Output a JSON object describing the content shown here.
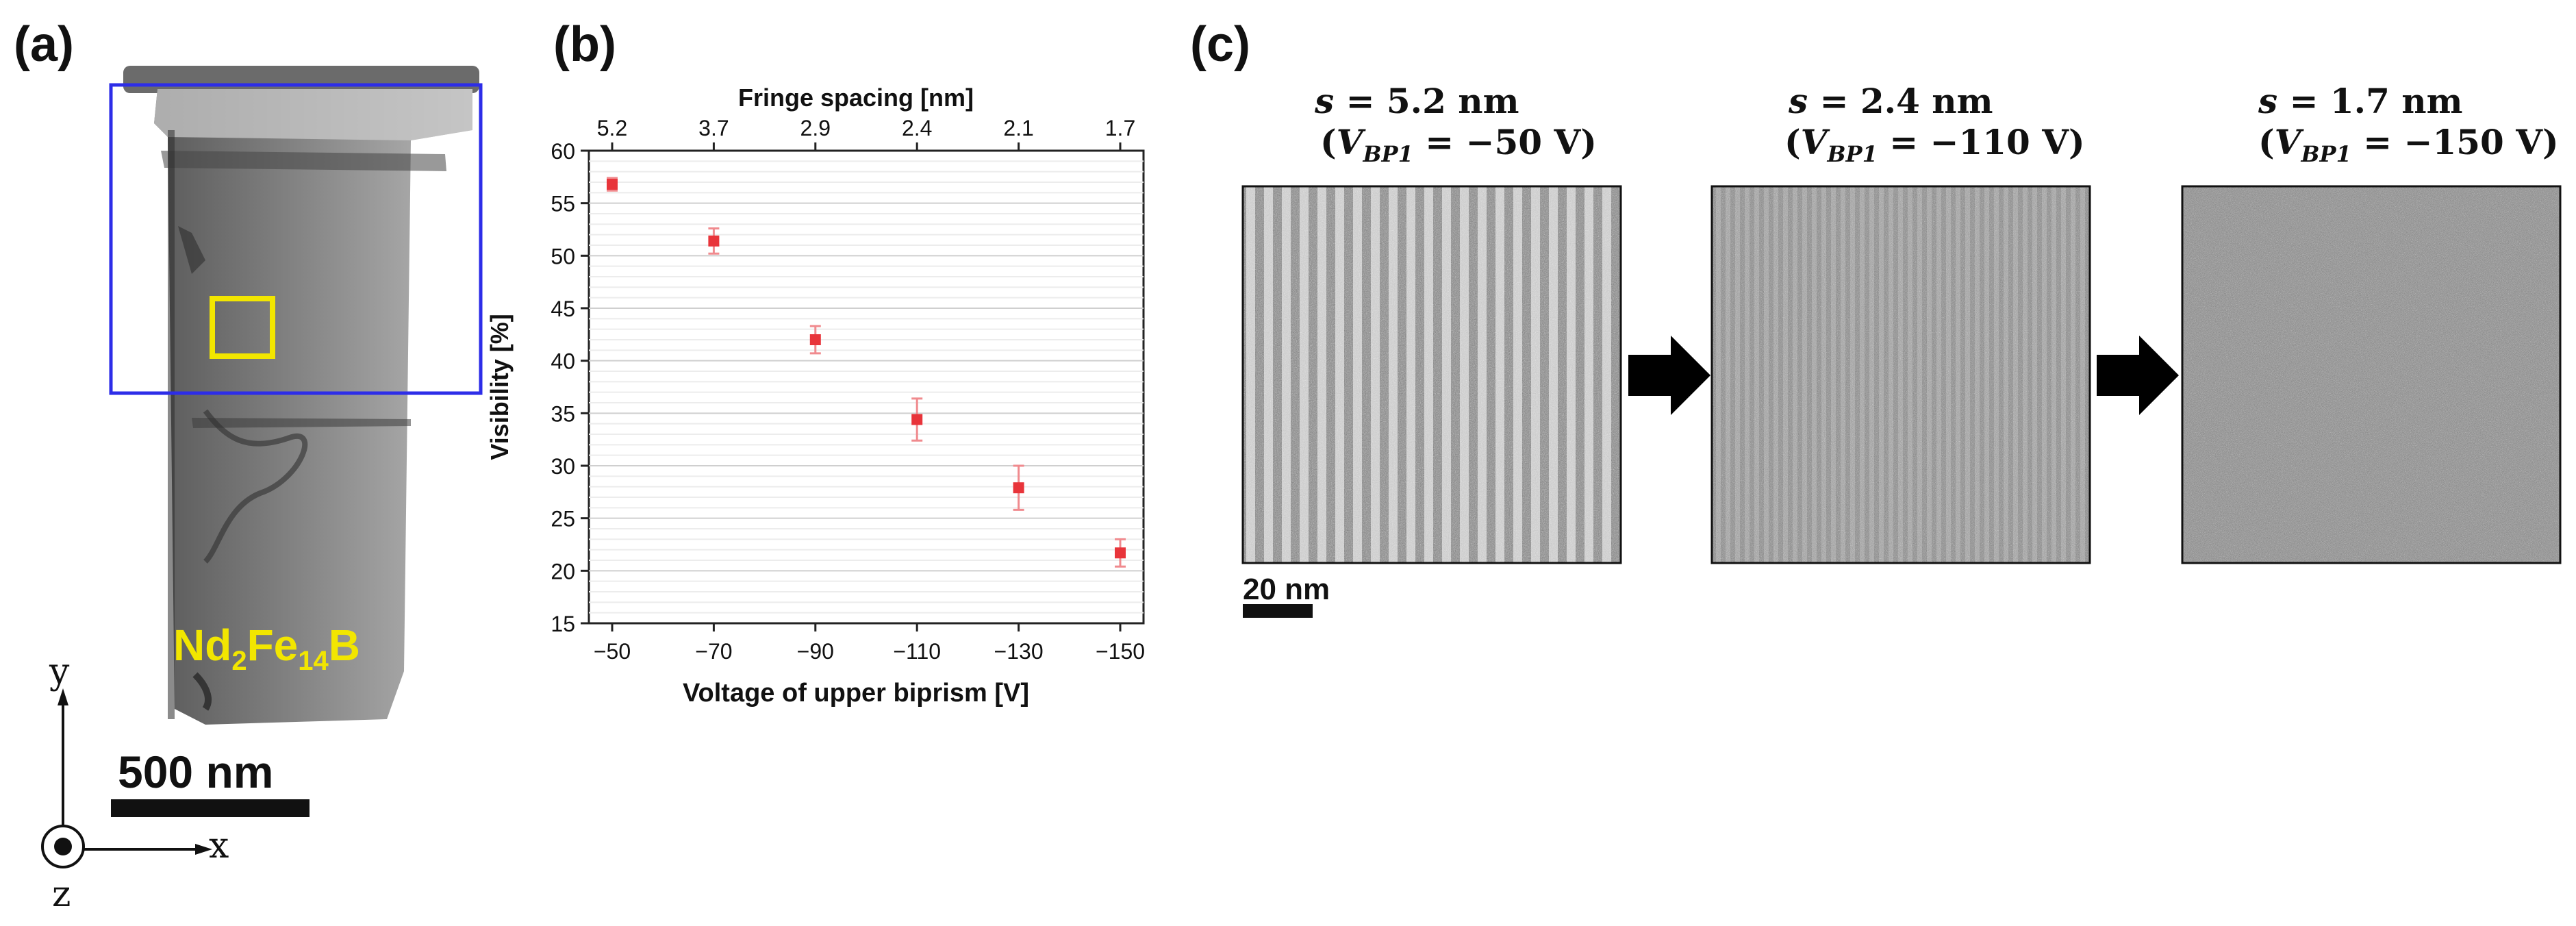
{
  "panels": {
    "a": {
      "label": "(a)",
      "material_label": "Nd",
      "material_sub1": "2",
      "material_mid": "Fe",
      "material_sub2": "14",
      "material_end": "B",
      "scale_bar": "500 nm",
      "axis_y": "y",
      "axis_x": "x",
      "axis_z": "z",
      "colors": {
        "region_box": "#2d2de8",
        "area_box": "#f2e600",
        "material_text": "#f2e600"
      }
    },
    "b": {
      "label": "(b)"
    },
    "c": {
      "label": "(c)",
      "scale_bar": "20 nm",
      "images": [
        {
          "s_var": "s",
          "s_value": "= 5.2 nm",
          "v_var": "V",
          "v_sub": "BP1",
          "v_value": "= −50 V"
        },
        {
          "s_var": "s",
          "s_value": "= 2.4 nm",
          "v_var": "V",
          "v_sub": "BP1",
          "v_value": "= −110 V"
        },
        {
          "s_var": "s",
          "s_value": "= 1.7 nm",
          "v_var": "V",
          "v_sub": "BP1",
          "v_value": "= −150 V"
        }
      ]
    }
  },
  "chart_data": {
    "type": "scatter",
    "title": "",
    "xlabel": "Voltage of upper biprism [V]",
    "ylabel": "Visibility [%]",
    "top_xlabel": "Fringe spacing [nm]",
    "categories": [
      "−50",
      "−70",
      "−90",
      "−110",
      "−130",
      "−150"
    ],
    "x": [
      -50,
      -70,
      -90,
      -110,
      -130,
      -150
    ],
    "top_tick_labels": [
      "5.2",
      "3.7",
      "2.9",
      "2.4",
      "2.1",
      "1.7"
    ],
    "y_tick_labels": [
      "15",
      "20",
      "25",
      "30",
      "35",
      "40",
      "45",
      "50",
      "55",
      "60"
    ],
    "ylim": [
      15,
      60
    ],
    "grid": true,
    "series": [
      {
        "name": "Visibility",
        "values": [
          56.8,
          51.4,
          42.0,
          34.4,
          27.9,
          21.7
        ],
        "error": [
          0.6,
          1.2,
          1.3,
          2.0,
          2.1,
          1.3
        ],
        "color": "#e8343a"
      }
    ]
  }
}
